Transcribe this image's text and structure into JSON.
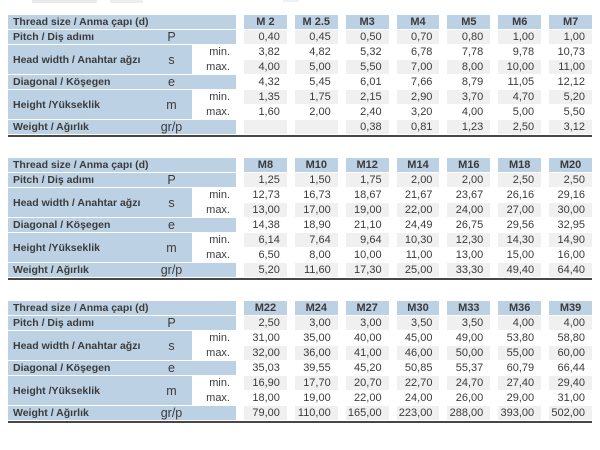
{
  "labels": {
    "thread_size": "Thread size / Anma çapı (d)",
    "pitch": "Pitch / Diş adımı",
    "head_width": "Head width / Anahtar ağzı",
    "diagonal": "Diagonal / Köşegen",
    "height": "Height /Yükseklik",
    "weight": "Weight / Ağırlık",
    "sym_pitch": "P",
    "sym_head_width": "s",
    "sym_diagonal": "e",
    "sym_height": "m",
    "sym_weight": "gr/p",
    "min": "min.",
    "max": "max."
  },
  "colors": {
    "header_blue": "#bdd1e4",
    "stripe_gray": "#f0f0f0",
    "border_dark": "#474747",
    "text": "#3b3b3b"
  },
  "tables": [
    {
      "columns": [
        "M 2",
        "M 2.5",
        "M3",
        "M4",
        "M5",
        "M6",
        "M7"
      ],
      "pitch": [
        "0,40",
        "0,45",
        "0,50",
        "0,70",
        "0,80",
        "1,00",
        "1,00"
      ],
      "head_width_min": [
        "3,82",
        "4,82",
        "5,32",
        "6,78",
        "7,78",
        "9,78",
        "10,73"
      ],
      "head_width_max": [
        "4,00",
        "5,00",
        "5,50",
        "7,00",
        "8,00",
        "10,00",
        "11,00"
      ],
      "diagonal": [
        "4,32",
        "5,45",
        "6,01",
        "7,66",
        "8,79",
        "11,05",
        "12,12"
      ],
      "height_min": [
        "1,35",
        "1,75",
        "2,15",
        "2,90",
        "3,70",
        "4,70",
        "5,20"
      ],
      "height_max": [
        "1,60",
        "2,00",
        "2,40",
        "3,20",
        "4,00",
        "5,00",
        "5,50"
      ],
      "weight": [
        "",
        "",
        "0,38",
        "0,81",
        "1,23",
        "2,50",
        "3,12"
      ]
    },
    {
      "columns": [
        "M8",
        "M10",
        "M12",
        "M14",
        "M16",
        "M18",
        "M20"
      ],
      "pitch": [
        "1,25",
        "1,50",
        "1,75",
        "2,00",
        "2,00",
        "2,50",
        "2,50"
      ],
      "head_width_min": [
        "12,73",
        "16,73",
        "18,67",
        "21,67",
        "23,67",
        "26,16",
        "29,16"
      ],
      "head_width_max": [
        "13,00",
        "17,00",
        "19,00",
        "22,00",
        "24,00",
        "27,00",
        "30,00"
      ],
      "diagonal": [
        "14,38",
        "18,90",
        "21,10",
        "24,49",
        "26,75",
        "29,56",
        "32,95"
      ],
      "height_min": [
        "6,14",
        "7,64",
        "9,64",
        "10,30",
        "12,30",
        "14,30",
        "14,90"
      ],
      "height_max": [
        "6,50",
        "8,00",
        "10,00",
        "11,00",
        "13,00",
        "15,00",
        "16,00"
      ],
      "weight": [
        "5,20",
        "11,60",
        "17,30",
        "25,00",
        "33,30",
        "49,40",
        "64,40"
      ]
    },
    {
      "columns": [
        "M22",
        "M24",
        "M27",
        "M30",
        "M33",
        "M36",
        "M39"
      ],
      "pitch": [
        "2,50",
        "3,00",
        "3,00",
        "3,50",
        "3,50",
        "4,00",
        "4,00"
      ],
      "head_width_min": [
        "31,00",
        "35,00",
        "40,00",
        "45,00",
        "49,00",
        "53,80",
        "58,80"
      ],
      "head_width_max": [
        "32,00",
        "36,00",
        "41,00",
        "46,00",
        "50,00",
        "55,00",
        "60,00"
      ],
      "diagonal": [
        "35,03",
        "39,55",
        "45,20",
        "50,85",
        "55,37",
        "60,79",
        "66,44"
      ],
      "height_min": [
        "16,90",
        "17,70",
        "20,70",
        "22,70",
        "24,70",
        "27,40",
        "29,40"
      ],
      "height_max": [
        "18,00",
        "19,00",
        "22,00",
        "24,00",
        "26,00",
        "29,00",
        "31,00"
      ],
      "weight": [
        "79,00",
        "110,00",
        "165,00",
        "223,00",
        "288,00",
        "393,00",
        "502,00"
      ]
    }
  ]
}
